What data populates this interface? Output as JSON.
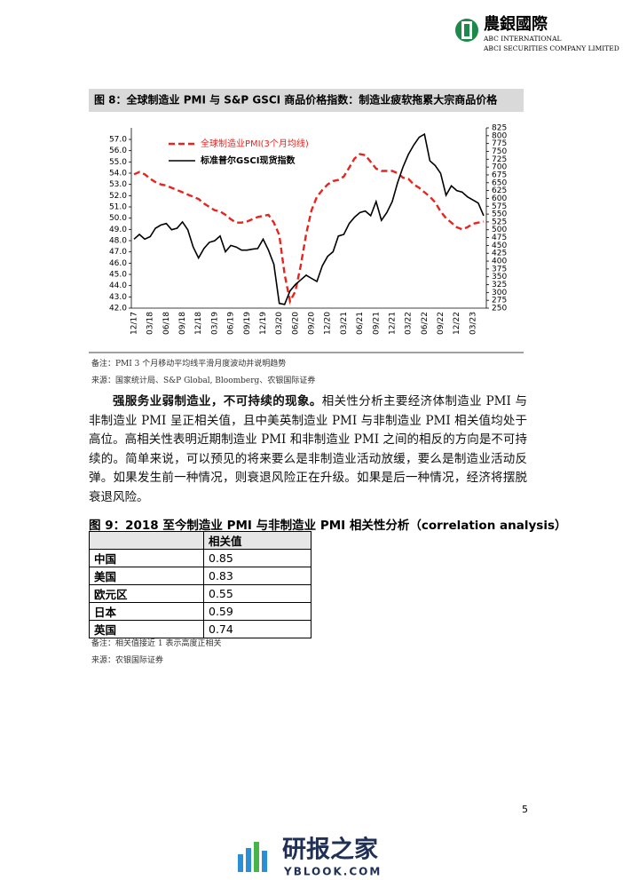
{
  "header": {
    "logo": "農銀國際",
    "line1": "ABC INTERNATIONAL",
    "line2": "ABCI SECURITIES COMPANY LIMITED"
  },
  "chart_data": {
    "type": "line",
    "title": "图 8：全球制造业 PMI 与 S&P GSCI 商品价格指数：制造业疲软拖累大宗商品价格",
    "categories": [
      "12/17",
      null,
      null,
      "03/18",
      null,
      null,
      "06/18",
      null,
      null,
      "09/18",
      null,
      null,
      "12/18",
      null,
      null,
      "03/19",
      null,
      null,
      "06/19",
      null,
      null,
      "09/19",
      null,
      null,
      "12/19",
      null,
      null,
      "03/20",
      null,
      null,
      "06/20",
      null,
      null,
      "09/20",
      null,
      null,
      "12/20",
      null,
      null,
      "03/21",
      null,
      null,
      "06/21",
      null,
      null,
      "09/21",
      null,
      null,
      "12/21",
      null,
      null,
      "03/22",
      null,
      null,
      "06/22",
      null,
      null,
      "09/22",
      null,
      null,
      "12/22",
      null,
      null,
      "03/23",
      null,
      null
    ],
    "series": [
      {
        "name": "全球制造业PMI(3个月均线)",
        "color": "#e8241f",
        "dash": true,
        "values": [
          53.9,
          54.1,
          53.9,
          53.5,
          53.2,
          53.0,
          52.9,
          52.7,
          52.5,
          52.3,
          52.1,
          51.9,
          51.7,
          51.3,
          51.0,
          50.7,
          50.6,
          50.3,
          49.9,
          49.6,
          49.6,
          49.7,
          49.9,
          50.1,
          50.2,
          50.3,
          49.6,
          48.5,
          45.0,
          42.6,
          43.5,
          45.8,
          48.6,
          50.7,
          51.9,
          52.5,
          53.0,
          53.3,
          53.4,
          53.7,
          54.5,
          55.3,
          55.7,
          55.6,
          55.0,
          54.4,
          54.2,
          54.2,
          54.2,
          54.0,
          53.6,
          53.5,
          53.0,
          52.7,
          52.3,
          51.9,
          51.4,
          50.6,
          50.0,
          49.6,
          49.2,
          49.0,
          49.2,
          49.5,
          49.6,
          49.7
        ]
      },
      {
        "name": "标准普尔GSCI现货指数",
        "color": "#000000",
        "axis": "y2",
        "values": [
          470,
          485,
          470,
          478,
          505,
          515,
          520,
          500,
          505,
          525,
          500,
          445,
          410,
          440,
          460,
          465,
          480,
          430,
          450,
          445,
          435,
          435,
          438,
          440,
          470,
          435,
          390,
          265,
          262,
          305,
          325,
          340,
          355,
          345,
          335,
          385,
          415,
          430,
          480,
          485,
          520,
          540,
          555,
          560,
          545,
          590,
          530,
          555,
          590,
          650,
          700,
          740,
          770,
          795,
          805,
          720,
          705,
          680,
          610,
          640,
          625,
          620,
          605,
          595,
          585,
          545
        ]
      }
    ],
    "ylim": [
      42,
      57
    ],
    "yticks": [
      {
        "value": 42,
        "label": "42.0"
      },
      {
        "value": 43,
        "label": "43.0"
      },
      {
        "value": 44,
        "label": "44.0"
      },
      {
        "value": 45,
        "label": "45.0"
      },
      {
        "value": 46,
        "label": "46.0"
      },
      {
        "value": 47,
        "label": "47.0"
      },
      {
        "value": 48,
        "label": "48.0"
      },
      {
        "value": 49,
        "label": "49.0"
      },
      {
        "value": 50,
        "label": "50.0"
      },
      {
        "value": 51,
        "label": "51.0"
      },
      {
        "value": 52,
        "label": "52.0"
      },
      {
        "value": 53,
        "label": "53.0"
      },
      {
        "value": 54,
        "label": "54.0"
      },
      {
        "value": 55,
        "label": "55.0"
      },
      {
        "value": 56,
        "label": "56.0"
      },
      {
        "value": 57,
        "label": "57.0"
      }
    ],
    "y2lim": [
      250,
      825
    ],
    "y2ticks": [
      250,
      275,
      300,
      325,
      350,
      375,
      400,
      425,
      450,
      475,
      500,
      525,
      550,
      575,
      600,
      625,
      650,
      675,
      700,
      725,
      750,
      775,
      800,
      825
    ]
  },
  "figure8_notes": [
    "备注：PMI 3 个月移动平均线平滑月度波动并说明趋势",
    "来源：国家统计局、S&P Global, Bloomberg、农银国际证券"
  ],
  "paragraph": {
    "lead": "强服务业弱制造业，不可持续的现象。",
    "text": "相关性分析主要经济体制造业 PMI 与非制造业 PMI 呈正相关值，且中美英制造业 PMI 与非制造业 PMI 相关值均处于高位。高相关性表明近期制造业 PMI 和非制造业 PMI 之间的相反的方向是不可持续的。简单来说，可以预见的将来要么是非制造业活动放缓，要么是制造业活动反弹。如果发生前一种情况，则衰退风险正在升级。如果是后一种情况，经济将摆脱衰退风险。"
  },
  "table": {
    "title": "图 9：2018 至今制造业 PMI 与非制造业 PMI 相关性分析（correlation analysis）",
    "header": "相关值",
    "rows": [
      [
        "中国",
        0.85
      ],
      [
        "美国",
        0.83
      ],
      [
        "欧元区",
        0.55
      ],
      [
        "日本",
        0.59
      ],
      [
        "英国",
        0.74
      ]
    ]
  },
  "figure9_notes": [
    "备注：相关值接近 1 表示高度正相关",
    "来源：农银国际证券"
  ],
  "page_number": "5",
  "watermark": {
    "name": "研报之家",
    "site": "YBLOOK.COM"
  }
}
